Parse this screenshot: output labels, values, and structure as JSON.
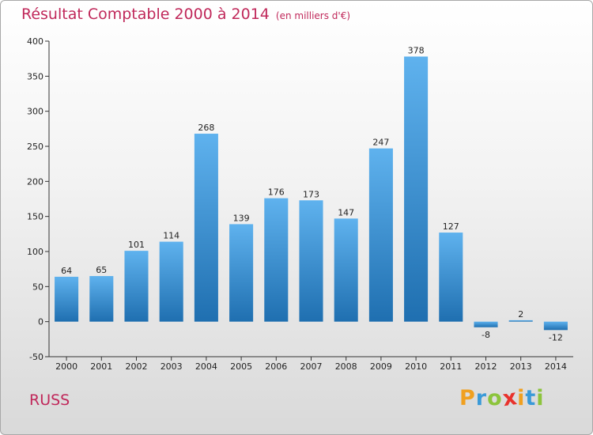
{
  "title": "Résultat Comptable 2000 à 2014",
  "subtitle": "(en milliers d'€)",
  "entity_name": "RUSS",
  "logo": {
    "text": "Proxiti",
    "letters": [
      "P",
      "r",
      "o",
      "x",
      "i",
      "t",
      "i"
    ],
    "colors": [
      "#f0a020",
      "#3a9ad8",
      "#8cc43c",
      "#e8322c",
      "#f0a020",
      "#3a9ad8",
      "#8cc43c"
    ]
  },
  "colors": {
    "title": "#c0285a",
    "bar_top": "#5fb2ee",
    "bar_bottom": "#1f6fb0",
    "axis": "#333333"
  },
  "chart_data": {
    "type": "bar",
    "categories": [
      "2000",
      "2001",
      "2002",
      "2003",
      "2004",
      "2005",
      "2006",
      "2007",
      "2008",
      "2009",
      "2010",
      "2011",
      "2012",
      "2013",
      "2014"
    ],
    "values": [
      64,
      65,
      101,
      114,
      268,
      139,
      176,
      173,
      147,
      247,
      378,
      127,
      -8,
      2,
      -12
    ],
    "value_labels": [
      "64",
      "65",
      "101",
      "114",
      "268",
      "139",
      "176",
      "173",
      "147",
      "247",
      "378",
      "127",
      "-8",
      "2",
      "-12"
    ],
    "title": "Résultat Comptable 2000 à 2014",
    "xlabel": "",
    "ylabel": "",
    "ylim": [
      -50,
      400
    ],
    "yticks": [
      -50,
      0,
      50,
      100,
      150,
      200,
      250,
      300,
      350,
      400
    ],
    "grid": false,
    "legend": "none"
  }
}
